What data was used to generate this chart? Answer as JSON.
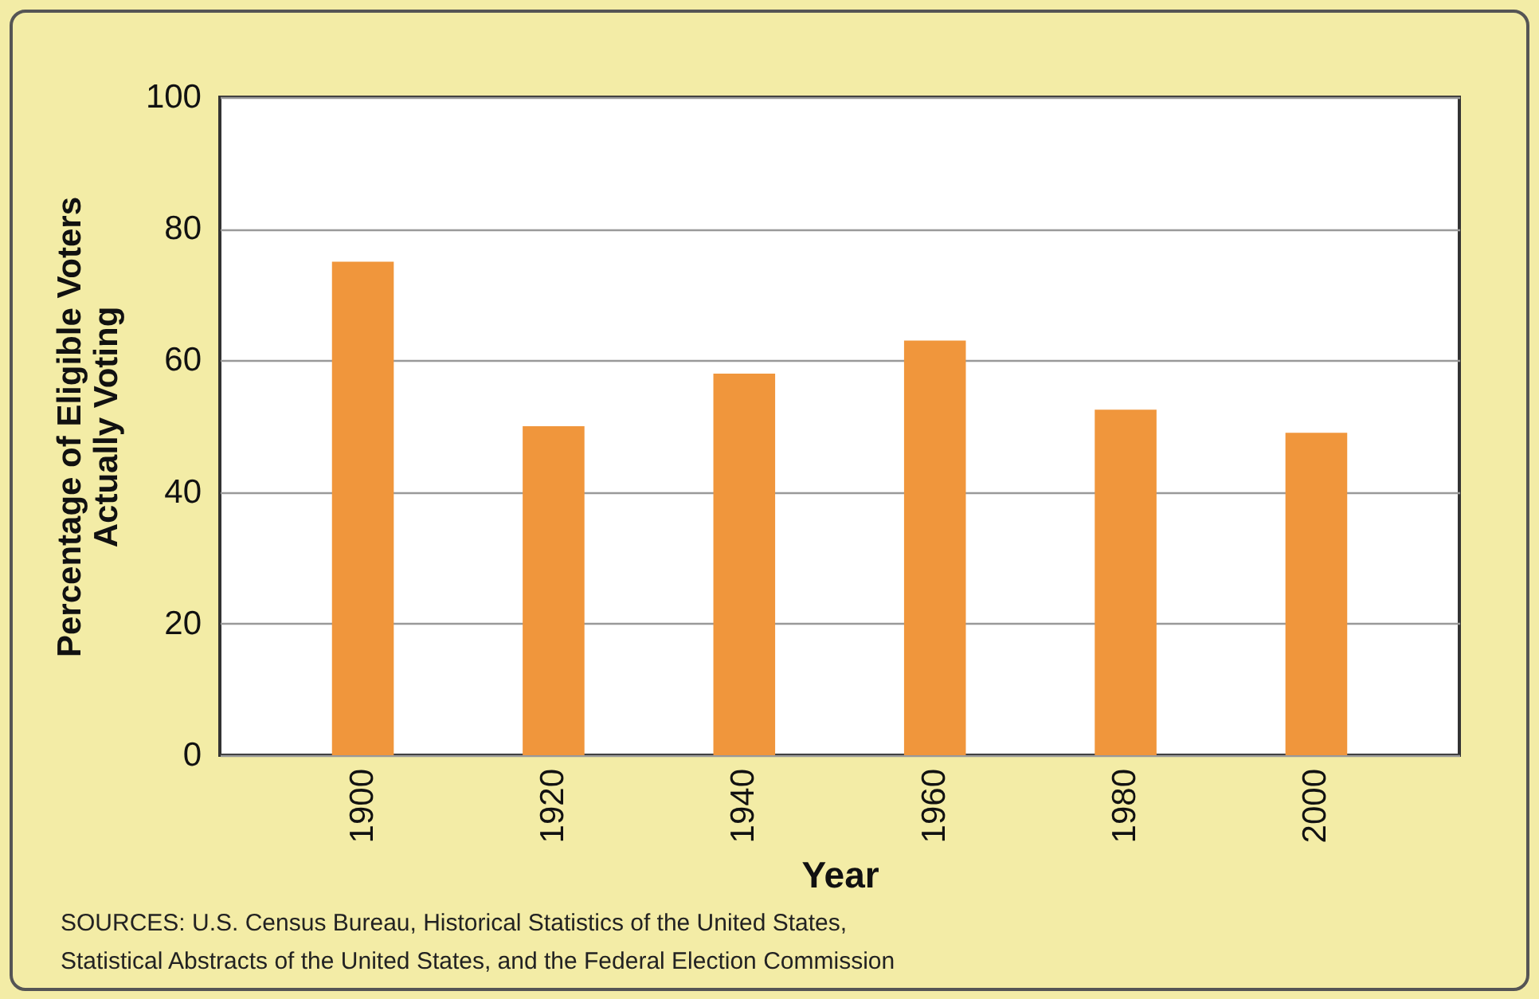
{
  "chart_data": {
    "type": "bar",
    "xlabel": "Year",
    "ylabel": "Percentage of Eligible Voters\nActually Voting",
    "categories": [
      "1900",
      "1920",
      "1940",
      "1960",
      "1980",
      "2000"
    ],
    "values": [
      75,
      50,
      58,
      63,
      52.5,
      49
    ],
    "color": "#f0963c",
    "ylim": [
      0,
      100
    ],
    "yticks": [
      0,
      20,
      40,
      60,
      80,
      100
    ],
    "grid": "y",
    "annotations": [
      "SOURCES: U.S. Census Bureau, Historical Statistics of the United States,\nStatistical Abstracts of the United States, and the Federal Election Commission"
    ]
  }
}
